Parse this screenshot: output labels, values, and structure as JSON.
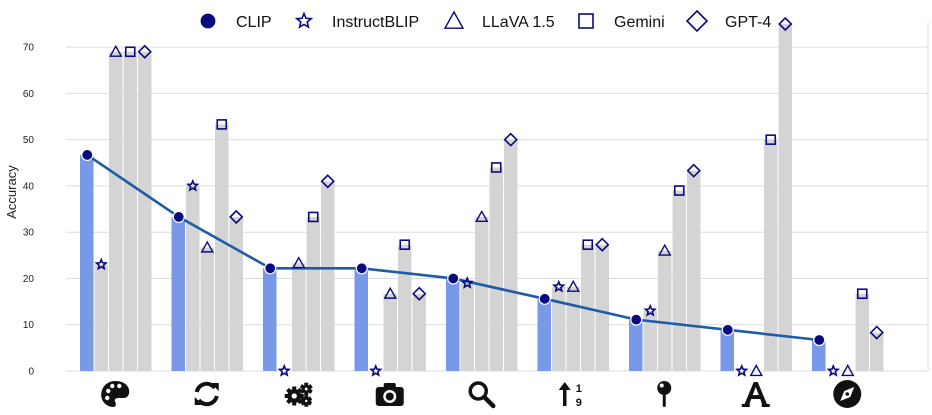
{
  "chart_data": {
    "type": "bar",
    "ylabel": "Accuracy",
    "xlabel": "",
    "ylim": [
      0,
      75
    ],
    "yticks": [
      0,
      10,
      20,
      30,
      40,
      50,
      60,
      70
    ],
    "grid": true,
    "legend_position": "top",
    "categories": [
      "palette-icon",
      "sync-icon",
      "gears-icon",
      "camera-icon",
      "search-icon",
      "sort-numeric-up-icon",
      "map-pin-icon",
      "font-icon",
      "compass-icon"
    ],
    "series": [
      {
        "name": "CLIP",
        "marker": "circle",
        "values": [
          46.7,
          33.3,
          22.2,
          22.2,
          20.0,
          15.6,
          11.1,
          8.9,
          6.7
        ]
      },
      {
        "name": "InstructBLIP",
        "marker": "star",
        "values": [
          23.0,
          40.0,
          0,
          0,
          19.0,
          18.2,
          13.0,
          0,
          0
        ]
      },
      {
        "name": "LLaVA 1.5",
        "marker": "triangle",
        "values": [
          69.0,
          26.7,
          23.3,
          16.7,
          33.3,
          18.2,
          26.0,
          0,
          0
        ]
      },
      {
        "name": "Gemini",
        "marker": "square",
        "values": [
          69.0,
          53.3,
          33.3,
          27.3,
          44.0,
          27.3,
          39.0,
          50.0,
          16.7
        ]
      },
      {
        "name": "GPT-4",
        "marker": "diamond",
        "values": [
          69.0,
          33.3,
          41.0,
          16.7,
          50.0,
          27.3,
          43.3,
          75.0,
          8.3
        ]
      }
    ],
    "colors": {
      "clip_bar": "#7799e8",
      "other_bar": "#d4d4d4",
      "clip_line": "#1f5ca8",
      "marker": "#0a0a80",
      "grid": "#dddddd",
      "icon": "#111111"
    }
  }
}
